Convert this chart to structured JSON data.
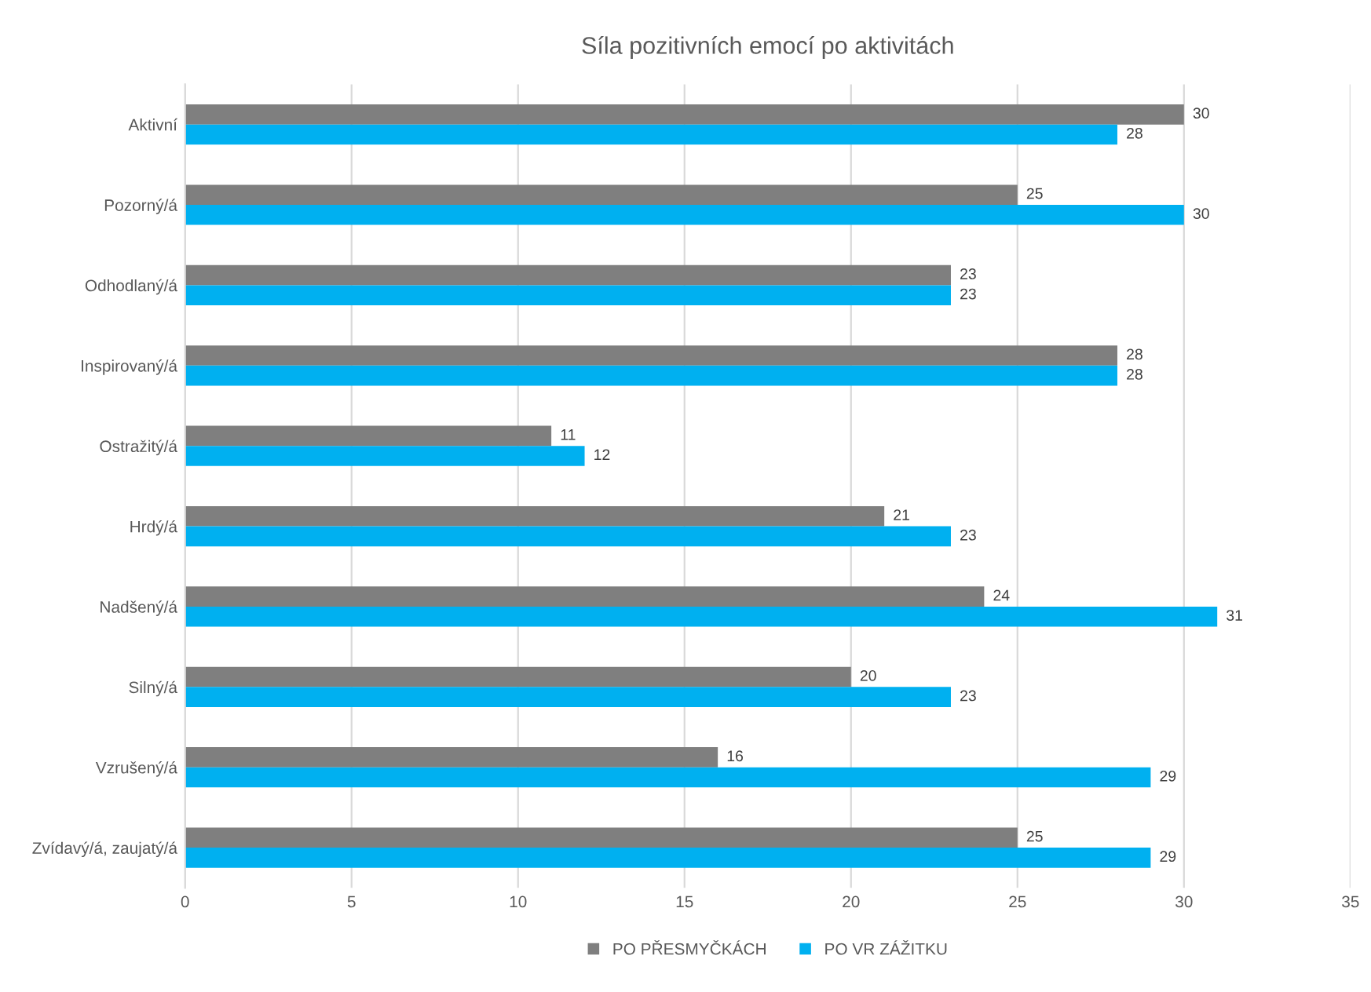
{
  "chart_data": {
    "type": "bar",
    "orientation": "horizontal",
    "title": "Síla pozitivních emocí po aktivitách",
    "categories": [
      "Aktivní",
      "Pozorný/á",
      "Odhodlaný/á",
      "Inspirovaný/á",
      "Ostražitý/á",
      "Hrdý/á",
      "Nadšený/á",
      "Silný/á",
      "Vzrušený/á",
      "Zvídavý/á, zaujatý/á"
    ],
    "series": [
      {
        "name": "PO PŘESMYČKÁCH",
        "color": "#7f7f7f",
        "values": [
          30,
          25,
          23,
          28,
          11,
          21,
          24,
          20,
          16,
          25
        ]
      },
      {
        "name": "PO VR ZÁŽITKU",
        "color": "#00b0f0",
        "values": [
          28,
          30,
          23,
          28,
          12,
          23,
          31,
          23,
          29,
          29
        ]
      }
    ],
    "xlim": [
      0,
      35
    ],
    "xticks": [
      0,
      5,
      10,
      15,
      20,
      25,
      30,
      35
    ],
    "grid": "x",
    "legend": "bottom",
    "data_labels": true
  }
}
